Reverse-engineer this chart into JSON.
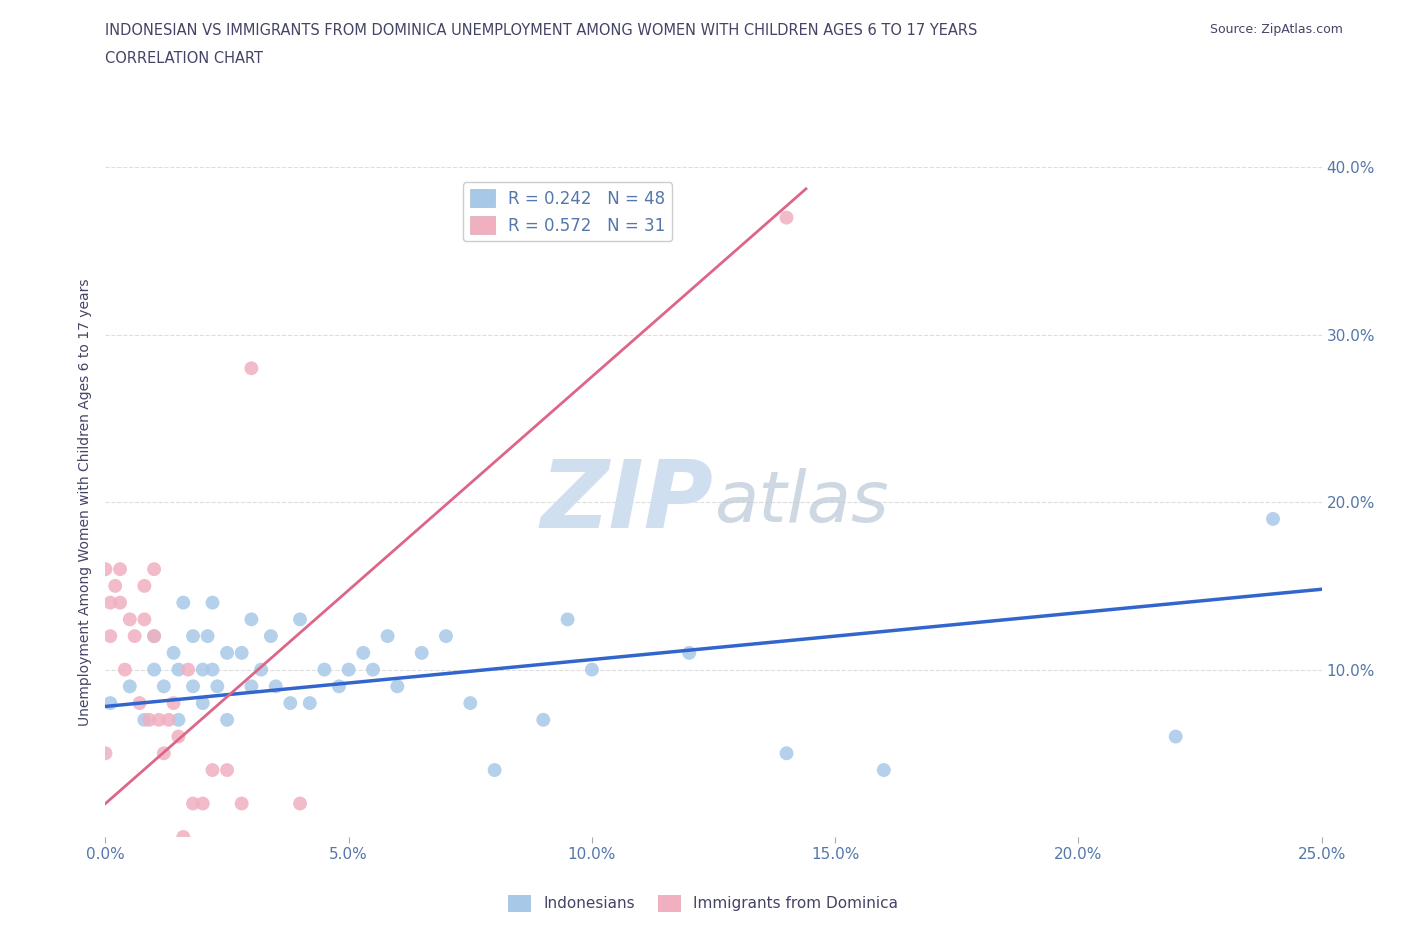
{
  "title_line1": "INDONESIAN VS IMMIGRANTS FROM DOMINICA UNEMPLOYMENT AMONG WOMEN WITH CHILDREN AGES 6 TO 17 YEARS",
  "title_line2": "CORRELATION CHART",
  "source": "Source: ZipAtlas.com",
  "ylabel": "Unemployment Among Women with Children Ages 6 to 17 years",
  "xlim": [
    0.0,
    0.25
  ],
  "ylim": [
    0.0,
    0.4
  ],
  "xticks": [
    0.0,
    0.05,
    0.1,
    0.15,
    0.2,
    0.25
  ],
  "yticks": [
    0.0,
    0.1,
    0.2,
    0.3,
    0.4
  ],
  "xticklabels": [
    "0.0%",
    "5.0%",
    "10.0%",
    "15.0%",
    "20.0%",
    "25.0%"
  ],
  "right_yticklabels": [
    "",
    "10.0%",
    "20.0%",
    "30.0%",
    "40.0%"
  ],
  "blue_color": "#a8c8e8",
  "pink_color": "#f0b0c0",
  "blue_line_color": "#3366cc",
  "pink_line_color": "#dd6688",
  "legend_R1": "R = 0.242",
  "legend_N1": "N = 48",
  "legend_R2": "R = 0.572",
  "legend_N2": "N = 31",
  "watermark_zip": "ZIP",
  "watermark_atlas": "atlas",
  "watermark_color": "#d0dff0",
  "title_color": "#444466",
  "axis_color": "#5577aa",
  "grid_color": "#dddddd",
  "background_color": "#ffffff",
  "indonesian_x": [
    0.001,
    0.005,
    0.008,
    0.01,
    0.01,
    0.012,
    0.014,
    0.015,
    0.015,
    0.016,
    0.018,
    0.018,
    0.02,
    0.02,
    0.021,
    0.022,
    0.022,
    0.023,
    0.025,
    0.025,
    0.028,
    0.03,
    0.03,
    0.032,
    0.034,
    0.035,
    0.038,
    0.04,
    0.042,
    0.045,
    0.048,
    0.05,
    0.053,
    0.055,
    0.058,
    0.06,
    0.065,
    0.07,
    0.075,
    0.08,
    0.09,
    0.095,
    0.1,
    0.12,
    0.14,
    0.16,
    0.22,
    0.24
  ],
  "indonesian_y": [
    0.08,
    0.09,
    0.07,
    0.1,
    0.12,
    0.09,
    0.11,
    0.07,
    0.1,
    0.14,
    0.09,
    0.12,
    0.1,
    0.08,
    0.12,
    0.1,
    0.14,
    0.09,
    0.11,
    0.07,
    0.11,
    0.09,
    0.13,
    0.1,
    0.12,
    0.09,
    0.08,
    0.13,
    0.08,
    0.1,
    0.09,
    0.1,
    0.11,
    0.1,
    0.12,
    0.09,
    0.11,
    0.12,
    0.08,
    0.04,
    0.07,
    0.13,
    0.1,
    0.11,
    0.05,
    0.04,
    0.06,
    0.19
  ],
  "dominica_x": [
    0.0,
    0.0,
    0.001,
    0.001,
    0.002,
    0.003,
    0.003,
    0.004,
    0.005,
    0.006,
    0.007,
    0.008,
    0.008,
    0.009,
    0.01,
    0.01,
    0.011,
    0.012,
    0.013,
    0.014,
    0.015,
    0.016,
    0.017,
    0.018,
    0.02,
    0.022,
    0.025,
    0.028,
    0.03,
    0.04,
    0.14
  ],
  "dominica_y": [
    0.16,
    0.05,
    0.14,
    0.12,
    0.15,
    0.14,
    0.16,
    0.1,
    0.13,
    0.12,
    0.08,
    0.15,
    0.13,
    0.07,
    0.16,
    0.12,
    0.07,
    0.05,
    0.07,
    0.08,
    0.06,
    0.0,
    0.1,
    0.02,
    0.02,
    0.04,
    0.04,
    0.02,
    0.28,
    0.02,
    0.37
  ],
  "blue_intercept": 0.078,
  "blue_slope": 0.28,
  "pink_intercept": 0.02,
  "pink_slope": 2.55
}
